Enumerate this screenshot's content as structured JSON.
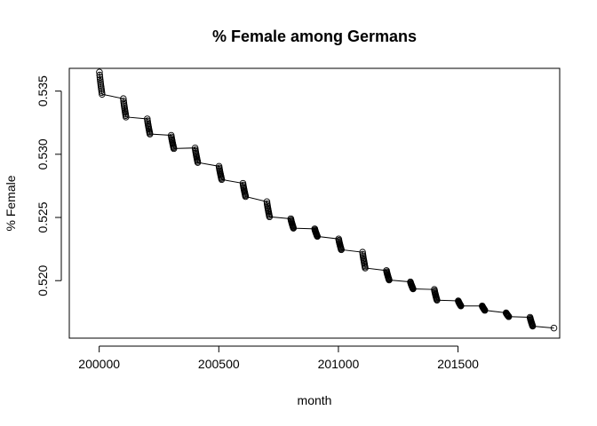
{
  "chart_data": {
    "type": "line",
    "title": "% Female among Germans",
    "xlabel": "month",
    "ylabel": "% Female",
    "xlim": [
      199875,
      201925
    ],
    "ylim": [
      0.51545,
      0.5368
    ],
    "x_ticks": [
      200000,
      200500,
      201000,
      201500
    ],
    "x_tick_labels": [
      "200000",
      "200500",
      "201000",
      "201500"
    ],
    "y_ticks": [
      0.52,
      0.525,
      0.53,
      0.535
    ],
    "y_tick_labels": [
      "0.520",
      "0.525",
      "0.530",
      "0.535"
    ],
    "grid": false,
    "legend": "none",
    "point_marker": "open-circle",
    "line_color": "#000000",
    "series": [
      {
        "yearly_start_end": [
          [
            2000,
            0.5365,
            0.53475
          ],
          [
            2001,
            0.5344,
            0.53295
          ],
          [
            2002,
            0.5328,
            0.5316
          ],
          [
            2003,
            0.5315,
            0.53045
          ],
          [
            2004,
            0.5305,
            0.52935
          ],
          [
            2005,
            0.52905,
            0.528
          ],
          [
            2006,
            0.5277,
            0.52665
          ],
          [
            2007,
            0.52625,
            0.52505
          ],
          [
            2008,
            0.5249,
            0.52415
          ],
          [
            2009,
            0.5241,
            0.5235
          ],
          [
            2010,
            0.5233,
            0.52245
          ],
          [
            2011,
            0.52225,
            0.521
          ],
          [
            2012,
            0.5208,
            0.52005
          ],
          [
            2013,
            0.5199,
            0.51935
          ],
          [
            2014,
            0.5193,
            0.51845
          ],
          [
            2015,
            0.5184,
            0.518
          ],
          [
            2016,
            0.518,
            0.51765
          ],
          [
            2017,
            0.51745,
            0.51715
          ],
          [
            2018,
            0.5171,
            0.5164
          ]
        ],
        "final_point": [
          201901,
          0.51625
        ]
      }
    ]
  }
}
